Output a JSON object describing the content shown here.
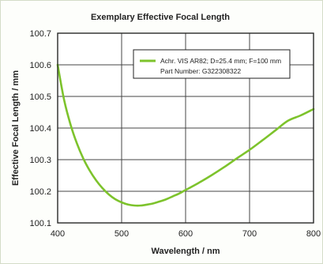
{
  "chart_data": {
    "type": "line",
    "title": "Exemplary Effective Focal Length",
    "xlabel": "Wavelength / nm",
    "ylabel": "Effective Focal Length / mm",
    "xlim": [
      400,
      800
    ],
    "ylim": [
      100.1,
      100.7
    ],
    "x_ticks": [
      "400",
      "500",
      "600",
      "700",
      "800"
    ],
    "y_ticks": [
      "100.1",
      "100.2",
      "100.3",
      "100.4",
      "100.5",
      "100.6",
      "100.7"
    ],
    "grid": true,
    "legend_position": "top-right",
    "legend_lines": [
      "Achr. VIS AR82; D=25.4 mm; F=100 mm",
      "Part Number: G322308322"
    ],
    "series": [
      {
        "name": "Achr. VIS AR82; D=25.4 mm; F=100 mm",
        "color": "#7dc32c",
        "x": [
          400,
          410,
          420,
          430,
          440,
          450,
          460,
          470,
          480,
          490,
          500,
          510,
          520,
          530,
          540,
          550,
          560,
          570,
          580,
          590,
          600,
          620,
          640,
          660,
          680,
          700,
          720,
          740,
          760,
          780,
          800
        ],
        "values": [
          100.6,
          100.49,
          100.412,
          100.352,
          100.304,
          100.266,
          100.235,
          100.21,
          100.19,
          100.175,
          100.165,
          100.158,
          100.155,
          100.155,
          100.158,
          100.162,
          100.168,
          100.175,
          100.184,
          100.193,
          100.204,
          100.226,
          100.25,
          100.276,
          100.304,
          100.331,
          100.361,
          100.392,
          100.423,
          100.44,
          100.46
        ]
      }
    ]
  }
}
